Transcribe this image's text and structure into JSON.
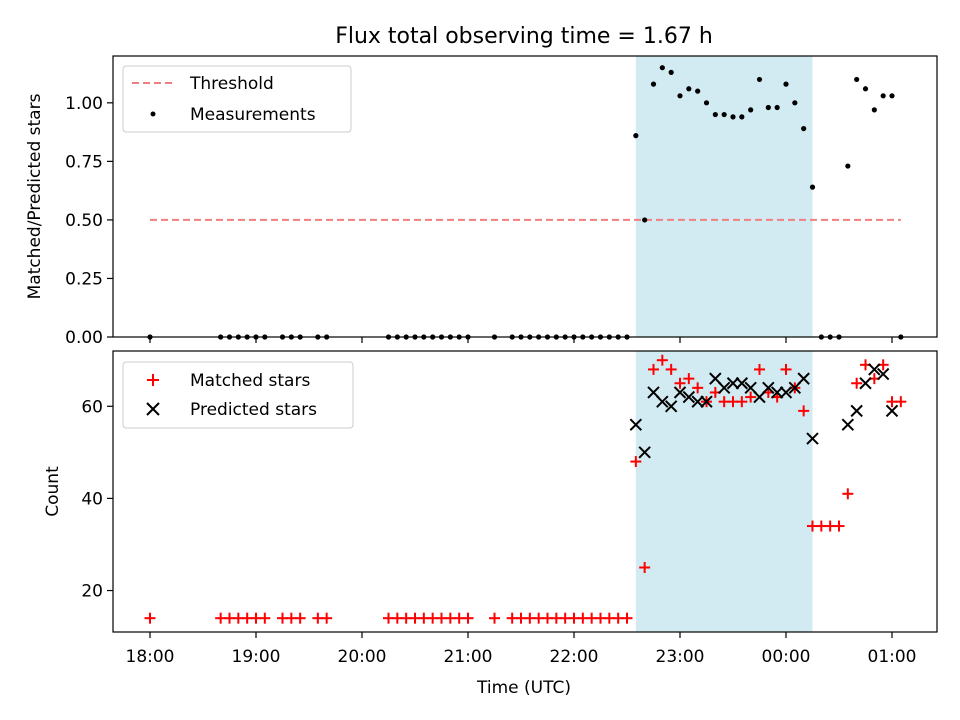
{
  "figure": {
    "title": "Flux total observing time = 1.67 h"
  },
  "chart_data": [
    {
      "type": "scatter",
      "ylabel": "Matched/Predicted stars",
      "xlabel": "",
      "ylim": [
        0,
        1.2
      ],
      "yticks": [
        0.0,
        0.25,
        0.5,
        0.75,
        1.0
      ],
      "ytick_labels": [
        "0.00",
        "0.25",
        "0.50",
        "0.75",
        "1.00"
      ],
      "legend_position": "top-left",
      "shaded_span": {
        "from": "22:35",
        "to": "00:15",
        "color": "#add8e6"
      },
      "threshold": {
        "name": "Threshold",
        "value": 0.5,
        "from": "18:00",
        "to": "01:05",
        "color": "#f08080",
        "style": "dashed"
      },
      "series": [
        {
          "name": "Measurements",
          "marker": "dot",
          "color": "#000000",
          "points": [
            [
              "18:00",
              0
            ],
            [
              "18:40",
              0
            ],
            [
              "18:45",
              0
            ],
            [
              "18:50",
              0
            ],
            [
              "18:55",
              0
            ],
            [
              "19:00",
              0
            ],
            [
              "19:05",
              0
            ],
            [
              "19:15",
              0
            ],
            [
              "19:20",
              0
            ],
            [
              "19:25",
              0
            ],
            [
              "19:35",
              0
            ],
            [
              "19:40",
              0
            ],
            [
              "20:15",
              0
            ],
            [
              "20:20",
              0
            ],
            [
              "20:25",
              0
            ],
            [
              "20:30",
              0
            ],
            [
              "20:35",
              0
            ],
            [
              "20:40",
              0
            ],
            [
              "20:45",
              0
            ],
            [
              "20:50",
              0
            ],
            [
              "20:55",
              0
            ],
            [
              "21:00",
              0
            ],
            [
              "21:15",
              0
            ],
            [
              "21:25",
              0
            ],
            [
              "21:30",
              0
            ],
            [
              "21:35",
              0
            ],
            [
              "21:40",
              0
            ],
            [
              "21:45",
              0
            ],
            [
              "21:50",
              0
            ],
            [
              "21:55",
              0
            ],
            [
              "22:00",
              0
            ],
            [
              "22:05",
              0
            ],
            [
              "22:10",
              0
            ],
            [
              "22:15",
              0
            ],
            [
              "22:20",
              0
            ],
            [
              "22:25",
              0
            ],
            [
              "22:30",
              0
            ],
            [
              "22:35",
              0.86
            ],
            [
              "22:40",
              0.5
            ],
            [
              "22:45",
              1.08
            ],
            [
              "22:50",
              1.15
            ],
            [
              "22:55",
              1.13
            ],
            [
              "23:00",
              1.03
            ],
            [
              "23:05",
              1.06
            ],
            [
              "23:10",
              1.05
            ],
            [
              "23:15",
              1.0
            ],
            [
              "23:20",
              0.95
            ],
            [
              "23:25",
              0.95
            ],
            [
              "23:30",
              0.94
            ],
            [
              "23:35",
              0.94
            ],
            [
              "23:40",
              0.97
            ],
            [
              "23:45",
              1.1
            ],
            [
              "23:50",
              0.98
            ],
            [
              "23:55",
              0.98
            ],
            [
              "00:00",
              1.08
            ],
            [
              "00:05",
              1.0
            ],
            [
              "00:10",
              0.89
            ],
            [
              "00:15",
              0.64
            ],
            [
              "00:20",
              0
            ],
            [
              "00:25",
              0
            ],
            [
              "00:30",
              0
            ],
            [
              "00:35",
              0.73
            ],
            [
              "00:40",
              1.1
            ],
            [
              "00:45",
              1.06
            ],
            [
              "00:50",
              0.97
            ],
            [
              "00:55",
              1.03
            ],
            [
              "01:00",
              1.03
            ],
            [
              "01:05",
              0
            ]
          ]
        }
      ]
    },
    {
      "type": "scatter",
      "ylabel": "Count",
      "xlabel": "Time (UTC)",
      "ylim": [
        11,
        72
      ],
      "yticks": [
        20,
        40,
        60
      ],
      "ytick_labels": [
        "20",
        "40",
        "60"
      ],
      "xticks": [
        "18:00",
        "19:00",
        "20:00",
        "21:00",
        "22:00",
        "23:00",
        "00:00",
        "01:00"
      ],
      "legend_position": "top-left",
      "shaded_span": {
        "from": "22:35",
        "to": "00:15",
        "color": "#add8e6"
      },
      "series": [
        {
          "name": "Matched stars",
          "marker": "plus",
          "color": "#ff0000",
          "points": [
            [
              "18:00",
              14
            ],
            [
              "18:40",
              14
            ],
            [
              "18:45",
              14
            ],
            [
              "18:50",
              14
            ],
            [
              "18:55",
              14
            ],
            [
              "19:00",
              14
            ],
            [
              "19:05",
              14
            ],
            [
              "19:15",
              14
            ],
            [
              "19:20",
              14
            ],
            [
              "19:25",
              14
            ],
            [
              "19:35",
              14
            ],
            [
              "19:40",
              14
            ],
            [
              "20:15",
              14
            ],
            [
              "20:20",
              14
            ],
            [
              "20:25",
              14
            ],
            [
              "20:30",
              14
            ],
            [
              "20:35",
              14
            ],
            [
              "20:40",
              14
            ],
            [
              "20:45",
              14
            ],
            [
              "20:50",
              14
            ],
            [
              "20:55",
              14
            ],
            [
              "21:00",
              14
            ],
            [
              "21:15",
              14
            ],
            [
              "21:25",
              14
            ],
            [
              "21:30",
              14
            ],
            [
              "21:35",
              14
            ],
            [
              "21:40",
              14
            ],
            [
              "21:45",
              14
            ],
            [
              "21:50",
              14
            ],
            [
              "21:55",
              14
            ],
            [
              "22:00",
              14
            ],
            [
              "22:05",
              14
            ],
            [
              "22:10",
              14
            ],
            [
              "22:15",
              14
            ],
            [
              "22:20",
              14
            ],
            [
              "22:25",
              14
            ],
            [
              "22:30",
              14
            ],
            [
              "22:35",
              48
            ],
            [
              "22:40",
              25
            ],
            [
              "22:45",
              68
            ],
            [
              "22:50",
              70
            ],
            [
              "22:55",
              68
            ],
            [
              "23:00",
              65
            ],
            [
              "23:05",
              66
            ],
            [
              "23:10",
              64
            ],
            [
              "23:15",
              61
            ],
            [
              "23:20",
              63
            ],
            [
              "23:25",
              61
            ],
            [
              "23:30",
              61
            ],
            [
              "23:35",
              61
            ],
            [
              "23:40",
              62
            ],
            [
              "23:45",
              68
            ],
            [
              "23:50",
              63
            ],
            [
              "23:55",
              62
            ],
            [
              "00:00",
              68
            ],
            [
              "00:05",
              64
            ],
            [
              "00:10",
              59
            ],
            [
              "00:15",
              34
            ],
            [
              "00:20",
              34
            ],
            [
              "00:25",
              34
            ],
            [
              "00:30",
              34
            ],
            [
              "00:35",
              41
            ],
            [
              "00:40",
              65
            ],
            [
              "00:45",
              69
            ],
            [
              "00:50",
              66
            ],
            [
              "00:55",
              69
            ],
            [
              "01:00",
              61
            ],
            [
              "01:05",
              61
            ]
          ]
        },
        {
          "name": "Predicted stars",
          "marker": "x",
          "color": "#000000",
          "points": [
            [
              "22:35",
              56
            ],
            [
              "22:40",
              50
            ],
            [
              "22:45",
              63
            ],
            [
              "22:50",
              61
            ],
            [
              "22:55",
              60
            ],
            [
              "23:00",
              63
            ],
            [
              "23:05",
              62
            ],
            [
              "23:10",
              61
            ],
            [
              "23:15",
              61
            ],
            [
              "23:20",
              66
            ],
            [
              "23:25",
              64
            ],
            [
              "23:30",
              65
            ],
            [
              "23:35",
              65
            ],
            [
              "23:40",
              64
            ],
            [
              "23:45",
              62
            ],
            [
              "23:50",
              64
            ],
            [
              "23:55",
              63
            ],
            [
              "00:00",
              63
            ],
            [
              "00:05",
              64
            ],
            [
              "00:10",
              66
            ],
            [
              "00:15",
              53
            ],
            [
              "00:35",
              56
            ],
            [
              "00:40",
              59
            ],
            [
              "00:45",
              65
            ],
            [
              "00:50",
              68
            ],
            [
              "00:55",
              67
            ],
            [
              "01:00",
              59
            ]
          ]
        }
      ]
    }
  ]
}
